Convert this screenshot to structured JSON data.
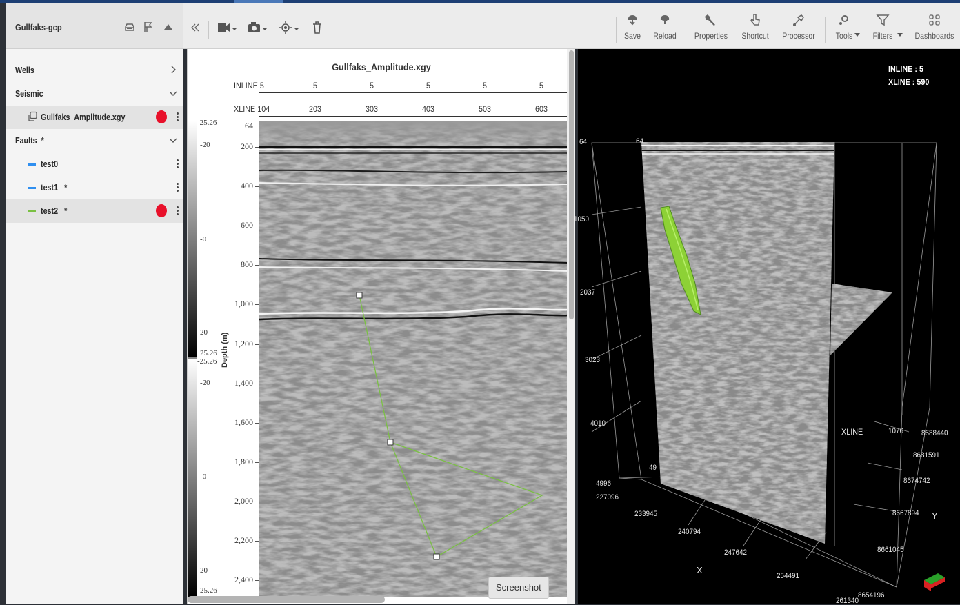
{
  "project": {
    "name": "Gullfaks-gcp"
  },
  "tree": {
    "wells_label": "Wells",
    "seismic_label": "Seismic",
    "seismic_item": "Gullfaks_Amplitude.xgy",
    "faults_label": "Faults",
    "faults_mark": "*",
    "faults": [
      {
        "name": "test0",
        "mark": "",
        "color": "#2f8ff0"
      },
      {
        "name": "test1",
        "mark": "*",
        "color": "#2f8ff0"
      },
      {
        "name": "test2",
        "mark": "*",
        "color": "#7ac043"
      }
    ]
  },
  "toolbar": {
    "save": "Save",
    "reload": "Reload",
    "properties": "Properties",
    "shortcut": "Shortcut",
    "processor": "Processor",
    "tools": "Tools",
    "filters": "Filters",
    "dashboards": "Dashboards"
  },
  "section": {
    "title": "Gullfaks_Amplitude.xgy",
    "inline_label": "INLINE",
    "inline_values": [
      "5",
      "5",
      "5",
      "5",
      "5",
      "5"
    ],
    "xline_label": "XLINE",
    "xline_values": [
      "104",
      "203",
      "303",
      "403",
      "503",
      "603"
    ],
    "top_depth": "64",
    "depth_ticks": [
      "200",
      "400",
      "600",
      "800",
      "1,000",
      "1,200",
      "1,400",
      "1,600",
      "1,800",
      "2,000",
      "2,200",
      "2,400"
    ],
    "depth_axis_title": "Depth (m)",
    "colorbar_top": [
      "-25.26",
      "-20",
      "-0",
      "20",
      "25.26"
    ],
    "colorbar_bottom": [
      "-25.26",
      "-20",
      "-0",
      "20",
      "25.26"
    ],
    "fault_line_color": "#7ac043",
    "screenshot_tooltip": "Screenshot"
  },
  "view3d": {
    "inline_info": "INLINE : 5",
    "xline_info": "XLINE  : 590",
    "depth_labels": [
      "64",
      "1050",
      "2037",
      "3023",
      "4010",
      "4996"
    ],
    "top_label": "64",
    "x_labels": [
      "227096",
      "233945",
      "240794",
      "247642",
      "254491",
      "261340"
    ],
    "y_labels": [
      "8688440",
      "8681591",
      "8674742",
      "8667894",
      "8661045",
      "8654196"
    ],
    "xline_axis_label": "XLINE",
    "xline_value": "1076",
    "x_axis_title": "X",
    "y_axis_title": "Y",
    "depth_partial": "49"
  }
}
